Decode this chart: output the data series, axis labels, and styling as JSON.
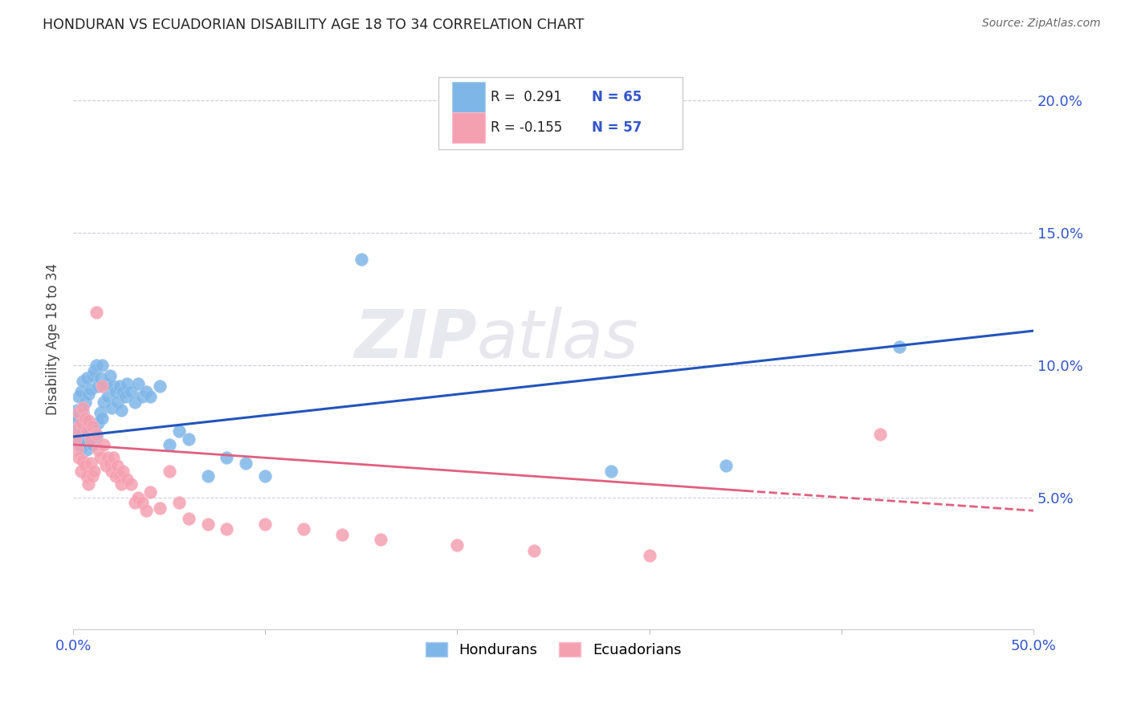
{
  "title": "HONDURAN VS ECUADORIAN DISABILITY AGE 18 TO 34 CORRELATION CHART",
  "source": "Source: ZipAtlas.com",
  "ylabel": "Disability Age 18 to 34",
  "x_min": 0.0,
  "x_max": 0.5,
  "y_min": 0.0,
  "y_max": 0.22,
  "yticks": [
    0.05,
    0.1,
    0.15,
    0.2
  ],
  "ytick_labels": [
    "5.0%",
    "10.0%",
    "15.0%",
    "20.0%"
  ],
  "xticks": [
    0.0,
    0.5
  ],
  "xtick_labels": [
    "0.0%",
    "50.0%"
  ],
  "honduran_color": "#7EB6E8",
  "ecuadorian_color": "#F4A0B0",
  "trend_honduran_color": "#2255BB",
  "trend_ecuadorian_color": "#E06080",
  "legend_label_honduran": "Hondurans",
  "legend_label_ecuadorian": "Ecuadorians",
  "watermark_zip": "ZIP",
  "watermark_atlas": "atlas",
  "hondurans_x": [
    0.001,
    0.001,
    0.002,
    0.002,
    0.003,
    0.003,
    0.003,
    0.004,
    0.004,
    0.004,
    0.005,
    0.005,
    0.005,
    0.006,
    0.006,
    0.007,
    0.007,
    0.007,
    0.008,
    0.008,
    0.009,
    0.009,
    0.01,
    0.01,
    0.011,
    0.011,
    0.012,
    0.012,
    0.013,
    0.013,
    0.014,
    0.014,
    0.015,
    0.015,
    0.016,
    0.017,
    0.018,
    0.019,
    0.02,
    0.021,
    0.022,
    0.023,
    0.024,
    0.025,
    0.026,
    0.027,
    0.028,
    0.03,
    0.032,
    0.034,
    0.036,
    0.038,
    0.04,
    0.045,
    0.05,
    0.055,
    0.06,
    0.07,
    0.08,
    0.09,
    0.1,
    0.15,
    0.28,
    0.34,
    0.43
  ],
  "hondurans_y": [
    0.074,
    0.079,
    0.072,
    0.083,
    0.076,
    0.08,
    0.088,
    0.069,
    0.075,
    0.09,
    0.073,
    0.082,
    0.094,
    0.071,
    0.086,
    0.068,
    0.078,
    0.095,
    0.074,
    0.089,
    0.072,
    0.091,
    0.07,
    0.096,
    0.075,
    0.098,
    0.073,
    0.1,
    0.078,
    0.092,
    0.082,
    0.095,
    0.08,
    0.1,
    0.086,
    0.093,
    0.088,
    0.096,
    0.084,
    0.092,
    0.09,
    0.086,
    0.092,
    0.083,
    0.09,
    0.088,
    0.093,
    0.09,
    0.086,
    0.093,
    0.088,
    0.09,
    0.088,
    0.092,
    0.07,
    0.075,
    0.072,
    0.058,
    0.065,
    0.063,
    0.058,
    0.14,
    0.06,
    0.062,
    0.107
  ],
  "ecuadorians_x": [
    0.001,
    0.002,
    0.002,
    0.003,
    0.003,
    0.004,
    0.004,
    0.005,
    0.005,
    0.006,
    0.006,
    0.007,
    0.007,
    0.008,
    0.008,
    0.009,
    0.009,
    0.01,
    0.01,
    0.011,
    0.012,
    0.012,
    0.013,
    0.014,
    0.015,
    0.016,
    0.017,
    0.018,
    0.019,
    0.02,
    0.021,
    0.022,
    0.023,
    0.024,
    0.025,
    0.026,
    0.028,
    0.03,
    0.032,
    0.034,
    0.036,
    0.038,
    0.04,
    0.045,
    0.05,
    0.055,
    0.06,
    0.07,
    0.08,
    0.1,
    0.12,
    0.14,
    0.16,
    0.2,
    0.24,
    0.3,
    0.42
  ],
  "ecuadorians_y": [
    0.072,
    0.068,
    0.076,
    0.065,
    0.082,
    0.06,
    0.078,
    0.064,
    0.084,
    0.062,
    0.08,
    0.058,
    0.075,
    0.055,
    0.079,
    0.063,
    0.072,
    0.058,
    0.077,
    0.06,
    0.12,
    0.074,
    0.068,
    0.065,
    0.092,
    0.07,
    0.062,
    0.065,
    0.063,
    0.06,
    0.065,
    0.058,
    0.062,
    0.058,
    0.055,
    0.06,
    0.057,
    0.055,
    0.048,
    0.05,
    0.048,
    0.045,
    0.052,
    0.046,
    0.06,
    0.048,
    0.042,
    0.04,
    0.038,
    0.04,
    0.038,
    0.036,
    0.034,
    0.032,
    0.03,
    0.028,
    0.074
  ],
  "trend_honduran_x0": 0.0,
  "trend_honduran_y0": 0.073,
  "trend_honduran_x1": 0.5,
  "trend_honduran_y1": 0.113,
  "trend_ecuadorian_x0": 0.0,
  "trend_ecuadorian_y0": 0.07,
  "trend_ecuadorian_x1": 0.5,
  "trend_ecuadorian_y1": 0.045,
  "trend_ecuadorian_dashed_start": 0.35
}
